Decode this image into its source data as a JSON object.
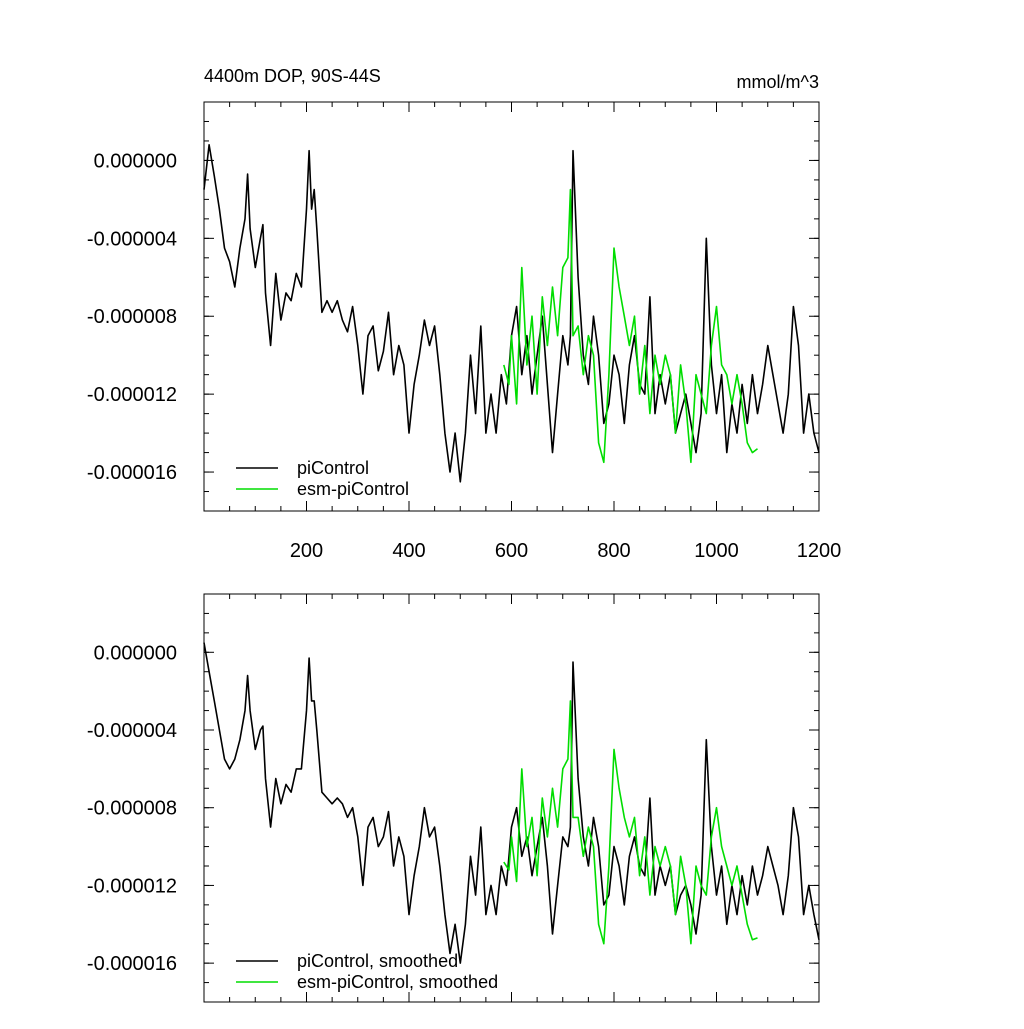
{
  "chart_data": [
    {
      "type": "line",
      "title_left": "4400m DOP, 90S-44S",
      "title_right": "mmol/m^3",
      "xlim": [
        0,
        1200
      ],
      "ylim": [
        -1.8e-05,
        3e-06
      ],
      "xticks": [
        200,
        400,
        600,
        800,
        1000,
        1200
      ],
      "xtick_labels": [
        "200",
        "400",
        "600",
        "800",
        "1000",
        "1200"
      ],
      "yticks": [
        0,
        -4e-06,
        -8e-06,
        -1.2e-05,
        -1.6e-05
      ],
      "ytick_labels": [
        "0.000000",
        "-0.000004",
        "-0.000008",
        "-0.000012",
        "-0.000016"
      ],
      "legend": [
        {
          "label": "piControl",
          "color": "#000000"
        },
        {
          "label": "esm-piControl",
          "color": "#00dd00"
        }
      ],
      "series": [
        {
          "name": "piControl",
          "color": "#000000",
          "x": [
            0,
            10,
            20,
            30,
            40,
            50,
            60,
            70,
            80,
            85,
            90,
            100,
            110,
            115,
            120,
            130,
            140,
            150,
            160,
            170,
            180,
            190,
            200,
            205,
            210,
            215,
            220,
            230,
            240,
            250,
            260,
            270,
            280,
            290,
            300,
            310,
            320,
            330,
            340,
            350,
            360,
            370,
            380,
            390,
            400,
            410,
            420,
            430,
            440,
            450,
            460,
            470,
            480,
            490,
            500,
            510,
            520,
            530,
            540,
            550,
            560,
            570,
            580,
            590,
            600,
            610,
            620,
            630,
            640,
            650,
            660,
            670,
            680,
            690,
            700,
            710,
            715,
            720,
            730,
            740,
            750,
            760,
            770,
            780,
            790,
            800,
            810,
            820,
            830,
            840,
            850,
            860,
            870,
            880,
            890,
            900,
            910,
            920,
            930,
            940,
            950,
            960,
            970,
            980,
            990,
            1000,
            1010,
            1020,
            1030,
            1040,
            1050,
            1060,
            1070,
            1080,
            1090,
            1100,
            1110,
            1120,
            1130,
            1140,
            1150,
            1160,
            1170,
            1180,
            1190,
            1200
          ],
          "values": [
            -1.5e-06,
            8e-07,
            -8e-07,
            -2.5e-06,
            -4.5e-06,
            -5.2e-06,
            -6.5e-06,
            -4.5e-06,
            -3e-06,
            -7e-07,
            -3.5e-06,
            -5.5e-06,
            -4e-06,
            -3.3e-06,
            -6.8e-06,
            -9.5e-06,
            -5.8e-06,
            -8.2e-06,
            -6.8e-06,
            -7.2e-06,
            -5.8e-06,
            -6.5e-06,
            -2.5e-06,
            5e-07,
            -2.5e-06,
            -1.5e-06,
            -3.5e-06,
            -7.8e-06,
            -7.2e-06,
            -7.8e-06,
            -7.2e-06,
            -8.2e-06,
            -8.8e-06,
            -7.5e-06,
            -9.5e-06,
            -1.2e-05,
            -9e-06,
            -8.5e-06,
            -1.08e-05,
            -9.8e-06,
            -7.8e-06,
            -1.1e-05,
            -9.5e-06,
            -1.05e-05,
            -1.4e-05,
            -1.15e-05,
            -1e-05,
            -8.2e-06,
            -9.5e-06,
            -8.5e-06,
            -1.1e-05,
            -1.4e-05,
            -1.6e-05,
            -1.4e-05,
            -1.65e-05,
            -1.4e-05,
            -1e-05,
            -1.3e-05,
            -8.5e-06,
            -1.4e-05,
            -1.2e-05,
            -1.4e-05,
            -1.1e-05,
            -1.25e-05,
            -9e-06,
            -7.5e-06,
            -1.1e-05,
            -9e-06,
            -1.2e-05,
            -1e-05,
            -8e-06,
            -1.15e-05,
            -1.5e-05,
            -1.2e-05,
            -9e-06,
            -1.05e-05,
            -9e-06,
            5e-07,
            -6e-06,
            -1e-05,
            -1.15e-05,
            -8e-06,
            -1e-05,
            -1.35e-05,
            -1.25e-05,
            -1e-05,
            -1.1e-05,
            -1.35e-05,
            -1.05e-05,
            -9e-06,
            -1.15e-05,
            -1.2e-05,
            -7e-06,
            -1.3e-05,
            -1.1e-05,
            -1.25e-05,
            -1.1e-05,
            -1.4e-05,
            -1.3e-05,
            -1.2e-05,
            -1.35e-05,
            -1.5e-05,
            -1.3e-05,
            -4e-06,
            -1.05e-05,
            -1.3e-05,
            -1.1e-05,
            -1.5e-05,
            -1.25e-05,
            -1.4e-05,
            -1.15e-05,
            -1.35e-05,
            -1.1e-05,
            -1.3e-05,
            -1.15e-05,
            -9.5e-06,
            -1.1e-05,
            -1.25e-05,
            -1.4e-05,
            -1.2e-05,
            -7.5e-06,
            -9.5e-06,
            -1.4e-05,
            -1.2e-05,
            -1.4e-05,
            -1.5e-05
          ]
        },
        {
          "name": "esm-piControl",
          "color": "#00dd00",
          "x": [
            585,
            595,
            600,
            610,
            620,
            630,
            640,
            650,
            660,
            670,
            680,
            690,
            700,
            710,
            715,
            720,
            730,
            740,
            750,
            760,
            770,
            780,
            790,
            800,
            810,
            820,
            830,
            840,
            850,
            860,
            870,
            880,
            890,
            900,
            910,
            920,
            930,
            940,
            950,
            960,
            970,
            980,
            990,
            1000,
            1010,
            1020,
            1030,
            1040,
            1050,
            1060,
            1070,
            1080
          ],
          "values": [
            -1.05e-05,
            -1.15e-05,
            -9e-06,
            -1.25e-05,
            -5.5e-06,
            -1.05e-05,
            -8e-06,
            -1.2e-05,
            -7e-06,
            -9.5e-06,
            -6.5e-06,
            -9e-06,
            -5.5e-06,
            -5e-06,
            -1.5e-06,
            -9e-06,
            -8.5e-06,
            -1.1e-05,
            -9e-06,
            -1e-05,
            -1.45e-05,
            -1.55e-05,
            -1.1e-05,
            -4.5e-06,
            -6.5e-06,
            -8e-06,
            -9.5e-06,
            -8e-06,
            -1.2e-05,
            -9.5e-06,
            -1.3e-05,
            -1e-05,
            -1.15e-05,
            -1e-05,
            -1.1e-05,
            -1.4e-05,
            -1.05e-05,
            -1.25e-05,
            -1.55e-05,
            -1.1e-05,
            -1.2e-05,
            -1.3e-05,
            -9.5e-06,
            -7.5e-06,
            -1.05e-05,
            -1.1e-05,
            -1.25e-05,
            -1.1e-05,
            -1.25e-05,
            -1.45e-05,
            -1.5e-05,
            -1.48e-05
          ]
        }
      ]
    },
    {
      "type": "line",
      "xlim": [
        0,
        1200
      ],
      "ylim": [
        -1.8e-05,
        3e-06
      ],
      "yticks": [
        0,
        -4e-06,
        -8e-06,
        -1.2e-05,
        -1.6e-05
      ],
      "ytick_labels": [
        "0.000000",
        "-0.000004",
        "-0.000008",
        "-0.000012",
        "-0.000016"
      ],
      "legend": [
        {
          "label": "piControl, smoothed",
          "color": "#000000"
        },
        {
          "label": "esm-piControl, smoothed",
          "color": "#00dd00"
        }
      ],
      "series": [
        {
          "name": "piControl, smoothed",
          "color": "#000000",
          "x": [
            0,
            10,
            20,
            30,
            40,
            50,
            60,
            70,
            80,
            85,
            90,
            100,
            110,
            115,
            120,
            130,
            140,
            150,
            160,
            170,
            180,
            190,
            200,
            205,
            210,
            215,
            220,
            230,
            240,
            250,
            260,
            270,
            280,
            290,
            300,
            310,
            320,
            330,
            340,
            350,
            360,
            370,
            380,
            390,
            400,
            410,
            420,
            430,
            440,
            450,
            460,
            470,
            480,
            490,
            500,
            510,
            520,
            530,
            540,
            550,
            560,
            570,
            580,
            590,
            600,
            610,
            620,
            630,
            640,
            650,
            660,
            670,
            680,
            690,
            700,
            710,
            715,
            720,
            730,
            740,
            750,
            760,
            770,
            780,
            790,
            800,
            810,
            820,
            830,
            840,
            850,
            860,
            870,
            880,
            890,
            900,
            910,
            920,
            930,
            940,
            950,
            960,
            970,
            980,
            990,
            1000,
            1010,
            1020,
            1030,
            1040,
            1050,
            1060,
            1070,
            1080,
            1090,
            1100,
            1110,
            1120,
            1130,
            1140,
            1150,
            1160,
            1170,
            1180,
            1190,
            1200
          ],
          "values": [
            5e-07,
            -1e-06,
            -2.5e-06,
            -4e-06,
            -5.5e-06,
            -6e-06,
            -5.5e-06,
            -4.5e-06,
            -3e-06,
            -1.2e-06,
            -3e-06,
            -5e-06,
            -4e-06,
            -3.8e-06,
            -6.5e-06,
            -9e-06,
            -6.5e-06,
            -7.8e-06,
            -6.8e-06,
            -7.2e-06,
            -6e-06,
            -6e-06,
            -3e-06,
            -3e-07,
            -2.5e-06,
            -2.5e-06,
            -4e-06,
            -7.2e-06,
            -7.5e-06,
            -7.8e-06,
            -7.5e-06,
            -7.8e-06,
            -8.5e-06,
            -8e-06,
            -9.5e-06,
            -1.2e-05,
            -9e-06,
            -8.5e-06,
            -1e-05,
            -9.5e-06,
            -8.2e-06,
            -1.1e-05,
            -9.5e-06,
            -1.05e-05,
            -1.35e-05,
            -1.15e-05,
            -1e-05,
            -8e-06,
            -9.5e-06,
            -9e-06,
            -1.1e-05,
            -1.35e-05,
            -1.55e-05,
            -1.4e-05,
            -1.6e-05,
            -1.4e-05,
            -1.05e-05,
            -1.25e-05,
            -9e-06,
            -1.35e-05,
            -1.2e-05,
            -1.35e-05,
            -1.1e-05,
            -1.2e-05,
            -9e-06,
            -8e-06,
            -1.05e-05,
            -9.5e-06,
            -1.15e-05,
            -1e-05,
            -8.5e-06,
            -1.1e-05,
            -1.45e-05,
            -1.2e-05,
            -9.5e-06,
            -1e-05,
            -9e-06,
            -5e-07,
            -6.5e-06,
            -9.5e-06,
            -1.1e-05,
            -8.5e-06,
            -1e-05,
            -1.3e-05,
            -1.25e-05,
            -1e-05,
            -1.1e-05,
            -1.3e-05,
            -1.05e-05,
            -9.5e-06,
            -1.1e-05,
            -1.15e-05,
            -7.5e-06,
            -1.25e-05,
            -1.1e-05,
            -1.2e-05,
            -1.1e-05,
            -1.35e-05,
            -1.25e-05,
            -1.2e-05,
            -1.3e-05,
            -1.45e-05,
            -1.25e-05,
            -4.5e-06,
            -1e-05,
            -1.25e-05,
            -1.1e-05,
            -1.4e-05,
            -1.2e-05,
            -1.35e-05,
            -1.15e-05,
            -1.3e-05,
            -1.1e-05,
            -1.25e-05,
            -1.15e-05,
            -1e-05,
            -1.1e-05,
            -1.2e-05,
            -1.35e-05,
            -1.15e-05,
            -8e-06,
            -9.5e-06,
            -1.35e-05,
            -1.2e-05,
            -1.35e-05,
            -1.48e-05
          ]
        },
        {
          "name": "esm-piControl, smoothed",
          "color": "#00dd00",
          "x": [
            585,
            595,
            600,
            610,
            620,
            630,
            640,
            650,
            660,
            670,
            680,
            690,
            700,
            710,
            715,
            720,
            730,
            740,
            750,
            760,
            770,
            780,
            790,
            800,
            810,
            820,
            830,
            840,
            850,
            860,
            870,
            880,
            890,
            900,
            910,
            920,
            930,
            940,
            950,
            960,
            970,
            980,
            990,
            1000,
            1010,
            1020,
            1030,
            1040,
            1050,
            1060,
            1070,
            1080
          ],
          "values": [
            -1.08e-05,
            -1.12e-05,
            -9.5e-06,
            -1.18e-05,
            -6e-06,
            -1e-05,
            -8.5e-06,
            -1.15e-05,
            -7.5e-06,
            -9.5e-06,
            -7e-06,
            -9e-06,
            -6e-06,
            -5.5e-06,
            -2.5e-06,
            -8.5e-06,
            -8.5e-06,
            -1.05e-05,
            -9e-06,
            -1e-05,
            -1.4e-05,
            -1.5e-05,
            -1.1e-05,
            -5e-06,
            -7e-06,
            -8.5e-06,
            -9.5e-06,
            -8.5e-06,
            -1.15e-05,
            -9.5e-06,
            -1.25e-05,
            -1e-05,
            -1.1e-05,
            -1e-05,
            -1.1e-05,
            -1.35e-05,
            -1.05e-05,
            -1.2e-05,
            -1.5e-05,
            -1.1e-05,
            -1.2e-05,
            -1.25e-05,
            -9.5e-06,
            -8e-06,
            -1e-05,
            -1.1e-05,
            -1.2e-05,
            -1.1e-05,
            -1.25e-05,
            -1.4e-05,
            -1.48e-05,
            -1.47e-05
          ]
        }
      ]
    }
  ]
}
